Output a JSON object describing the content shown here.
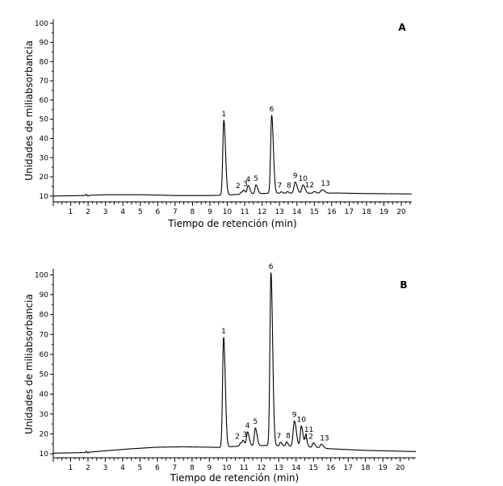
{
  "chart_data": [
    {
      "type": "line",
      "panel": "A",
      "xlabel": "Tiempo de retención (min)",
      "ylabel": "Unidades  de miliabsorbancia",
      "xlim": [
        0,
        20.6
      ],
      "ylim": [
        7,
        102
      ],
      "xticks": [
        1,
        2,
        3,
        4,
        5,
        6,
        7,
        8,
        9,
        10,
        11,
        12,
        13,
        14,
        15,
        16,
        17,
        18,
        19,
        20
      ],
      "yticks": [
        10,
        20,
        30,
        40,
        50,
        60,
        70,
        80,
        90,
        100
      ],
      "grid": false,
      "baseline": [
        [
          0,
          10
        ],
        [
          1.8,
          10.3
        ],
        [
          3,
          10.7
        ],
        [
          5,
          10.7
        ],
        [
          7,
          10.3
        ],
        [
          9,
          10.3
        ],
        [
          9.6,
          10.4
        ],
        [
          11,
          11
        ],
        [
          12.5,
          11.5
        ],
        [
          14.5,
          11.5
        ],
        [
          15.5,
          11.4
        ],
        [
          16.2,
          11.6
        ],
        [
          18,
          11.3
        ],
        [
          20.6,
          11.1
        ]
      ],
      "peaks": [
        {
          "label": "1",
          "rt": 9.8,
          "height": 49.5,
          "width": 0.06
        },
        {
          "label": "2",
          "rt": 10.8,
          "height": 12,
          "width": 0.05
        },
        {
          "label": "3",
          "rt": 10.95,
          "height": 13,
          "width": 0.05
        },
        {
          "label": "4",
          "rt": 11.2,
          "height": 15.5,
          "width": 0.06
        },
        {
          "label": "5",
          "rt": 11.65,
          "height": 15.8,
          "width": 0.06
        },
        {
          "label": "6",
          "rt": 12.55,
          "height": 52,
          "width": 0.06
        },
        {
          "label": "7",
          "rt": 13.1,
          "height": 12.2,
          "width": 0.05
        },
        {
          "label": "8",
          "rt": 13.45,
          "height": 12.3,
          "width": 0.05
        },
        {
          "label": "9",
          "rt": 13.9,
          "height": 17.3,
          "width": 0.07
        },
        {
          "label": "10",
          "rt": 14.35,
          "height": 15.8,
          "width": 0.07
        },
        {
          "label": "12",
          "rt": 15.0,
          "height": 12.4,
          "width": 0.06
        },
        {
          "label": "13",
          "rt": 15.45,
          "height": 13.3,
          "width": 0.09
        }
      ],
      "panel_label": "A"
    },
    {
      "type": "line",
      "panel": "B",
      "xlabel": "Tiempo de retención (min)",
      "ylabel": "Unidades  de miliabsorbancia",
      "xlim": [
        0,
        20.9
      ],
      "ylim": [
        8,
        103
      ],
      "xticks": [
        1,
        2,
        3,
        4,
        5,
        6,
        7,
        8,
        9,
        10,
        11,
        12,
        13,
        14,
        15,
        16,
        17,
        18,
        19,
        20
      ],
      "yticks": [
        10,
        20,
        30,
        40,
        50,
        60,
        70,
        80,
        90,
        100
      ],
      "grid": false,
      "baseline": [
        [
          0,
          10.3
        ],
        [
          1.8,
          10.6
        ],
        [
          3,
          11.5
        ],
        [
          4.5,
          12.5
        ],
        [
          6,
          13.3
        ],
        [
          7.5,
          13.5
        ],
        [
          9,
          13.3
        ],
        [
          9.6,
          13.2
        ],
        [
          11,
          14
        ],
        [
          12.5,
          14.2
        ],
        [
          14.5,
          13.5
        ],
        [
          16,
          12.5
        ],
        [
          18,
          11.7
        ],
        [
          20.9,
          11.1
        ]
      ],
      "peaks": [
        {
          "label": "1",
          "rt": 9.82,
          "height": 68.5,
          "width": 0.06
        },
        {
          "label": "2",
          "rt": 10.8,
          "height": 15.5,
          "width": 0.05
        },
        {
          "label": "3",
          "rt": 10.95,
          "height": 16.5,
          "width": 0.05
        },
        {
          "label": "4",
          "rt": 11.2,
          "height": 21,
          "width": 0.06
        },
        {
          "label": "5",
          "rt": 11.65,
          "height": 23,
          "width": 0.06
        },
        {
          "label": "6",
          "rt": 12.55,
          "height": 101,
          "width": 0.06
        },
        {
          "label": "7",
          "rt": 13.1,
          "height": 15.8,
          "width": 0.05
        },
        {
          "label": "8",
          "rt": 13.45,
          "height": 16,
          "width": 0.05
        },
        {
          "label": "9",
          "rt": 13.9,
          "height": 26.5,
          "width": 0.07
        },
        {
          "label": "10",
          "rt": 14.3,
          "height": 24,
          "width": 0.06
        },
        {
          "label": "11",
          "rt": 14.55,
          "height": 19,
          "width": 0.05
        },
        {
          "label": "12",
          "rt": 15.0,
          "height": 15.5,
          "width": 0.06
        },
        {
          "label": "13",
          "rt": 15.45,
          "height": 14.8,
          "width": 0.07
        }
      ],
      "panel_label": "B"
    }
  ]
}
